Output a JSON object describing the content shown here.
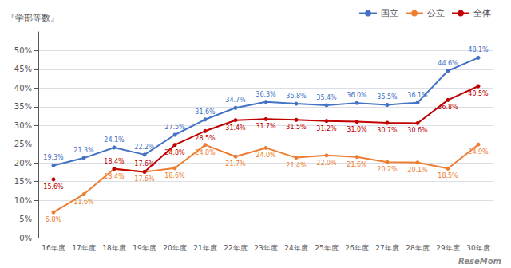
{
  "chart_data": {
    "type": "line",
    "ylabel": "『学部等数』",
    "annotations": [
      "ReseMom"
    ],
    "categories": [
      "16年度",
      "17年度",
      "18年度",
      "19年度",
      "20年度",
      "21年度",
      "22年度",
      "23年度",
      "24年度",
      "25年度",
      "26年度",
      "27年度",
      "28年度",
      "29年度",
      "30年度"
    ],
    "series": [
      {
        "name": "国立",
        "color": "#4472C4",
        "values": [
          19.3,
          21.3,
          24.1,
          22.2,
          27.5,
          31.6,
          34.7,
          36.3,
          35.8,
          35.4,
          36.0,
          35.5,
          36.1,
          44.6,
          48.1
        ],
        "value_labels": [
          "19.3%",
          "21.3%",
          "24.1%",
          "22.2%",
          "27.5%",
          "31.6%",
          "34.7%",
          "36.3%",
          "35.8%",
          "35.4%",
          "36.0%",
          "35.5%",
          "36.1%",
          "44.6%",
          "48.1%"
        ]
      },
      {
        "name": "公立",
        "color": "#ED7D31",
        "values": [
          6.8,
          11.6,
          18.4,
          17.6,
          18.6,
          24.8,
          21.7,
          24.0,
          21.4,
          22.0,
          21.6,
          20.2,
          20.1,
          18.5,
          24.9
        ],
        "value_labels": [
          "6.8%",
          "11.6%",
          "18.4%",
          "17.6%",
          "18.6%",
          "24.8%",
          "21.7%",
          "24.0%",
          "21.4%",
          "22.0%",
          "21.6%",
          "20.2%",
          "20.1%",
          "18.5%",
          "24.9%"
        ]
      },
      {
        "name": "全体",
        "color": "#C00000",
        "values": [
          15.6,
          null,
          18.4,
          17.6,
          24.8,
          28.5,
          31.4,
          31.7,
          31.5,
          31.2,
          31.0,
          30.7,
          30.6,
          36.8,
          40.5
        ],
        "value_labels": [
          "15.6%",
          null,
          "18.4%",
          "17.6%",
          "24.8%",
          "28.5%",
          "31.4%",
          "31.7%",
          "31.5%",
          "31.2%",
          "31.0%",
          "30.7%",
          "30.6%",
          "36.8%",
          "40.5%"
        ]
      }
    ],
    "ylim": [
      0,
      55
    ],
    "yticks": [
      {
        "value": 0,
        "label": "0%"
      },
      {
        "value": 5,
        "label": "5%"
      },
      {
        "value": 10,
        "label": "10%"
      },
      {
        "value": 15,
        "label": "15%"
      },
      {
        "value": 20,
        "label": "20%"
      },
      {
        "value": 25,
        "label": "25%"
      },
      {
        "value": 30,
        "label": "30%"
      },
      {
        "value": 35,
        "label": "35%"
      },
      {
        "value": 40,
        "label": "40%"
      },
      {
        "value": 45,
        "label": "45%"
      },
      {
        "value": 50,
        "label": "50%"
      }
    ],
    "grid": true,
    "legend": "upper right",
    "data_labels": true
  }
}
